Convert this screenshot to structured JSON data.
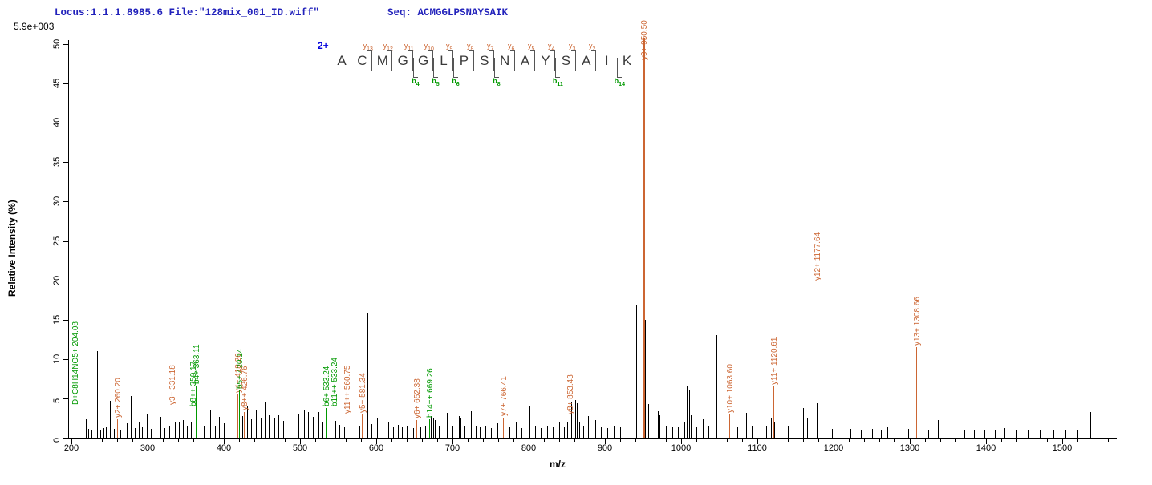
{
  "header": {
    "locus_text": "Locus:1.1.1.8985.6 File:\"128mix_001_ID.wiff\"",
    "seq_text": "Seq: ACMGGLPSNAYSAIK",
    "max_intensity_label": "5.9e+003"
  },
  "colors": {
    "header_blue": "#2222bb",
    "charge_blue": "#0000dd",
    "y_ion_orange": "#cc6633",
    "b_ion_green": "#009900",
    "peak_black": "#000000",
    "residue_gray": "#3a3a3a"
  },
  "sequence_panel": {
    "charge_label": "2+",
    "residues": [
      "A",
      "C",
      "M",
      "G",
      "G",
      "L",
      "P",
      "S",
      "N",
      "A",
      "Y",
      "S",
      "A",
      "I",
      "K"
    ],
    "y_fragments": [
      {
        "letter": "y",
        "n": "13",
        "gap": 2
      },
      {
        "letter": "y",
        "n": "12",
        "gap": 3
      },
      {
        "letter": "y",
        "n": "11",
        "gap": 4
      },
      {
        "letter": "y",
        "n": "10",
        "gap": 5
      },
      {
        "letter": "y",
        "n": "9",
        "gap": 6
      },
      {
        "letter": "y",
        "n": "8",
        "gap": 7
      },
      {
        "letter": "y",
        "n": "7",
        "gap": 8
      },
      {
        "letter": "y",
        "n": "6",
        "gap": 9
      },
      {
        "letter": "y",
        "n": "5",
        "gap": 10
      },
      {
        "letter": "y",
        "n": "4",
        "gap": 11
      },
      {
        "letter": "y",
        "n": "3",
        "gap": 12
      },
      {
        "letter": "y",
        "n": "2",
        "gap": 13
      }
    ],
    "b_fragments": [
      {
        "letter": "b",
        "n": "4",
        "gap": 4
      },
      {
        "letter": "b",
        "n": "5",
        "gap": 5
      },
      {
        "letter": "b",
        "n": "6",
        "gap": 6
      },
      {
        "letter": "b",
        "n": "8",
        "gap": 8
      },
      {
        "letter": "b",
        "n": "11",
        "gap": 11
      },
      {
        "letter": "b",
        "n": "14",
        "gap": 14
      }
    ]
  },
  "chart_data": {
    "type": "bar",
    "subtype": "mass-spectrum",
    "title": "",
    "xlabel": "m/z",
    "ylabel": "Relative  Intensity (%)",
    "xlim": [
      196,
      1565
    ],
    "ylim": [
      0,
      50
    ],
    "x_ticks": [
      200,
      300,
      400,
      500,
      600,
      700,
      800,
      900,
      1000,
      1100,
      1200,
      1300,
      1400,
      1500
    ],
    "y_ticks": [
      0,
      5,
      10,
      15,
      20,
      25,
      30,
      35,
      40,
      45,
      50
    ],
    "grid": false,
    "legend": "none",
    "base_peak_absolute_intensity": "5.9e+003",
    "annotated_peaks": [
      {
        "label": "D+C8H14NO5+ 204.08",
        "mz": 204.08,
        "intensity": 4.0,
        "ion": "b"
      },
      {
        "label": "y2+ 260.20",
        "mz": 260.2,
        "intensity": 2.3,
        "ion": "y"
      },
      {
        "label": "y3+ 331.18",
        "mz": 331.18,
        "intensity": 4.0,
        "ion": "y"
      },
      {
        "label": "b8++ 359.17",
        "mz": 359.17,
        "intensity": 3.8,
        "ion": "b"
      },
      {
        "label": "b4+ 363.11",
        "mz": 363.11,
        "intensity": 6.6,
        "ion": "b"
      },
      {
        "label": "y4+ 418.26",
        "mz": 418.26,
        "intensity": 5.5,
        "ion": "y"
      },
      {
        "label": "b5+ 420.14",
        "mz": 420.14,
        "intensity": 6.0,
        "ion": "b"
      },
      {
        "label": "y8++ 426.76",
        "mz": 426.76,
        "intensity": 3.3,
        "ion": "y"
      },
      {
        "label": "b6+ 533.24",
        "mz": 533.24,
        "intensity": 3.8,
        "ion": "b"
      },
      {
        "label": "b11++ 533.24",
        "mz": 533.24,
        "intensity": 3.8,
        "ion": "b",
        "label_dx": 10
      },
      {
        "label": "y11++ 560.75",
        "mz": 560.75,
        "intensity": 2.9,
        "ion": "y"
      },
      {
        "label": "y5+ 581.34",
        "mz": 581.34,
        "intensity": 3.0,
        "ion": "y"
      },
      {
        "label": "y6+ 652.38",
        "mz": 652.38,
        "intensity": 2.2,
        "ion": "y"
      },
      {
        "label": "b14++ 669.26",
        "mz": 669.26,
        "intensity": 2.3,
        "ion": "b"
      },
      {
        "label": "y7+ 766.41",
        "mz": 766.41,
        "intensity": 2.5,
        "ion": "y"
      },
      {
        "label": "y8+ 853.43",
        "mz": 853.43,
        "intensity": 2.8,
        "ion": "y"
      },
      {
        "label": "y9+ 950.50",
        "mz": 950.5,
        "intensity": 50.8,
        "ion": "y",
        "width": 2,
        "label_raise": -30
      },
      {
        "label": "y10+ 1063.60",
        "mz": 1063.6,
        "intensity": 3.0,
        "ion": "y"
      },
      {
        "label": "y11+ 1120.61",
        "mz": 1120.61,
        "intensity": 6.5,
        "ion": "y"
      },
      {
        "label": "y12+ 1177.64",
        "mz": 1177.64,
        "intensity": 19.8,
        "ion": "y"
      },
      {
        "label": "y13+ 1308.66",
        "mz": 1308.66,
        "intensity": 6.2,
        "ion": "y",
        "label_raise": 52
      }
    ],
    "unlabeled_peaks": [
      [
        215,
        1.4
      ],
      [
        219,
        2.3
      ],
      [
        222,
        1.1
      ],
      [
        226,
        1.0
      ],
      [
        230,
        1.6
      ],
      [
        234,
        11.0
      ],
      [
        238,
        1.0
      ],
      [
        242,
        1.2
      ],
      [
        245,
        1.3
      ],
      [
        250,
        4.7
      ],
      [
        256,
        1.1
      ],
      [
        264,
        1.0
      ],
      [
        268,
        1.4
      ],
      [
        273,
        1.8
      ],
      [
        278,
        5.3
      ],
      [
        283,
        1.2
      ],
      [
        288,
        2.0
      ],
      [
        293,
        1.3
      ],
      [
        299,
        3.0
      ],
      [
        304,
        1.1
      ],
      [
        310,
        1.4
      ],
      [
        317,
        2.6
      ],
      [
        322,
        1.2
      ],
      [
        328,
        1.5
      ],
      [
        336,
        2.0
      ],
      [
        341,
        1.9
      ],
      [
        346,
        2.2
      ],
      [
        352,
        1.4
      ],
      [
        357,
        2.0
      ],
      [
        369,
        6.5
      ],
      [
        374,
        1.5
      ],
      [
        382,
        3.6
      ],
      [
        388,
        1.4
      ],
      [
        394,
        2.6
      ],
      [
        400,
        1.8
      ],
      [
        406,
        1.4
      ],
      [
        412,
        2.2
      ],
      [
        424,
        2.7
      ],
      [
        430,
        4.1
      ],
      [
        436,
        2.3
      ],
      [
        442,
        3.6
      ],
      [
        448,
        2.4
      ],
      [
        454,
        4.6
      ],
      [
        459,
        2.9
      ],
      [
        466,
        2.4
      ],
      [
        472,
        2.9
      ],
      [
        478,
        2.1
      ],
      [
        486,
        3.6
      ],
      [
        492,
        2.4
      ],
      [
        498,
        3.1
      ],
      [
        505,
        3.5
      ],
      [
        511,
        3.3
      ],
      [
        517,
        2.6
      ],
      [
        524,
        3.3
      ],
      [
        529,
        2.0
      ],
      [
        540,
        2.7
      ],
      [
        546,
        2.1
      ],
      [
        552,
        1.6
      ],
      [
        558,
        1.3
      ],
      [
        566,
        1.9
      ],
      [
        572,
        1.6
      ],
      [
        578,
        1.4
      ],
      [
        588,
        15.8
      ],
      [
        594,
        1.7
      ],
      [
        598,
        2.0
      ],
      [
        601,
        2.5
      ],
      [
        608,
        1.4
      ],
      [
        616,
        2.0
      ],
      [
        622,
        1.3
      ],
      [
        628,
        1.6
      ],
      [
        634,
        1.3
      ],
      [
        640,
        1.5
      ],
      [
        648,
        1.2
      ],
      [
        652,
        2.6
      ],
      [
        658,
        1.3
      ],
      [
        664,
        1.4
      ],
      [
        672,
        2.8
      ],
      [
        675,
        2.5
      ],
      [
        677,
        2.2
      ],
      [
        682,
        1.4
      ],
      [
        688,
        3.4
      ],
      [
        693,
        3.2
      ],
      [
        700,
        1.5
      ],
      [
        708,
        2.7
      ],
      [
        710,
        2.5
      ],
      [
        716,
        1.4
      ],
      [
        724,
        3.4
      ],
      [
        730,
        1.5
      ],
      [
        736,
        1.3
      ],
      [
        743,
        1.5
      ],
      [
        750,
        1.2
      ],
      [
        759,
        1.8
      ],
      [
        768,
        4.3
      ],
      [
        775,
        1.3
      ],
      [
        783,
        2.0
      ],
      [
        790,
        1.2
      ],
      [
        801,
        4.1
      ],
      [
        808,
        1.4
      ],
      [
        816,
        1.2
      ],
      [
        824,
        1.5
      ],
      [
        832,
        1.3
      ],
      [
        840,
        2.0
      ],
      [
        846,
        1.3
      ],
      [
        850,
        2.0
      ],
      [
        856,
        4.6
      ],
      [
        861,
        4.8
      ],
      [
        863,
        4.4
      ],
      [
        866,
        1.9
      ],
      [
        872,
        1.5
      ],
      [
        878,
        2.7
      ],
      [
        887,
        2.2
      ],
      [
        895,
        1.3
      ],
      [
        903,
        1.2
      ],
      [
        912,
        1.4
      ],
      [
        920,
        1.3
      ],
      [
        928,
        1.4
      ],
      [
        934,
        1.2
      ],
      [
        941,
        16.8
      ],
      [
        952.5,
        15.0
      ],
      [
        957,
        4.3
      ],
      [
        960,
        3.3
      ],
      [
        969,
        3.4
      ],
      [
        972,
        2.9
      ],
      [
        980,
        1.4
      ],
      [
        988,
        1.3
      ],
      [
        996,
        1.3
      ],
      [
        1004,
        2.0
      ],
      [
        1007,
        6.6
      ],
      [
        1010,
        6.0
      ],
      [
        1013,
        2.9
      ],
      [
        1020,
        1.3
      ],
      [
        1028,
        2.3
      ],
      [
        1036,
        1.4
      ],
      [
        1046,
        13.0
      ],
      [
        1056,
        1.4
      ],
      [
        1066,
        1.5
      ],
      [
        1074,
        1.3
      ],
      [
        1082,
        3.7
      ],
      [
        1085,
        3.2
      ],
      [
        1094,
        1.4
      ],
      [
        1104,
        1.3
      ],
      [
        1112,
        1.5
      ],
      [
        1118,
        2.4
      ],
      [
        1122,
        2.0
      ],
      [
        1130,
        1.2
      ],
      [
        1140,
        1.4
      ],
      [
        1152,
        1.3
      ],
      [
        1160,
        3.8
      ],
      [
        1165,
        2.5
      ],
      [
        1179,
        4.4
      ],
      [
        1188,
        1.3
      ],
      [
        1198,
        1.1
      ],
      [
        1210,
        1.0
      ],
      [
        1222,
        1.1
      ],
      [
        1236,
        1.0
      ],
      [
        1250,
        1.1
      ],
      [
        1262,
        1.0
      ],
      [
        1270,
        1.3
      ],
      [
        1284,
        1.0
      ],
      [
        1298,
        1.1
      ],
      [
        1312,
        1.4
      ],
      [
        1324,
        1.0
      ],
      [
        1337,
        2.2
      ],
      [
        1348,
        1.0
      ],
      [
        1359,
        1.6
      ],
      [
        1372,
        0.9
      ],
      [
        1384,
        1.0
      ],
      [
        1398,
        0.9
      ],
      [
        1412,
        1.0
      ],
      [
        1424,
        1.2
      ],
      [
        1440,
        0.9
      ],
      [
        1456,
        1.0
      ],
      [
        1472,
        0.9
      ],
      [
        1488,
        1.0
      ],
      [
        1504,
        0.9
      ],
      [
        1520,
        1.0
      ],
      [
        1537,
        3.3
      ]
    ]
  }
}
